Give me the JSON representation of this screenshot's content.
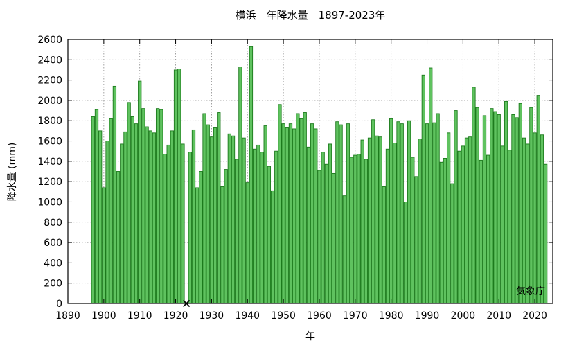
{
  "chart_data": {
    "type": "bar",
    "title": "横浜　年降水量　1897-2023年",
    "xlabel": "年",
    "ylabel": "降水量 (mm)",
    "source": "気象庁",
    "xlim": [
      1890,
      2025
    ],
    "ylim": [
      0,
      2600
    ],
    "x_ticks": [
      1890,
      1900,
      1910,
      1920,
      1930,
      1940,
      1950,
      1960,
      1970,
      1980,
      1990,
      2000,
      2010,
      2020
    ],
    "y_ticks": [
      0,
      200,
      400,
      600,
      800,
      1000,
      1200,
      1400,
      1600,
      1800,
      2000,
      2200,
      2400,
      2600
    ],
    "grid": true,
    "missing_marker": {
      "x": 1923,
      "y": 0,
      "symbol": "×"
    },
    "x": [
      1897,
      1898,
      1899,
      1900,
      1901,
      1902,
      1903,
      1904,
      1905,
      1906,
      1907,
      1908,
      1909,
      1910,
      1911,
      1912,
      1913,
      1914,
      1915,
      1916,
      1917,
      1918,
      1919,
      1920,
      1921,
      1922,
      1924,
      1925,
      1926,
      1927,
      1928,
      1929,
      1930,
      1931,
      1932,
      1933,
      1934,
      1935,
      1936,
      1937,
      1938,
      1939,
      1940,
      1941,
      1942,
      1943,
      1944,
      1945,
      1946,
      1947,
      1948,
      1949,
      1950,
      1951,
      1952,
      1953,
      1954,
      1955,
      1956,
      1957,
      1958,
      1959,
      1960,
      1961,
      1962,
      1963,
      1964,
      1965,
      1966,
      1967,
      1968,
      1969,
      1970,
      1971,
      1972,
      1973,
      1974,
      1975,
      1976,
      1977,
      1978,
      1979,
      1980,
      1981,
      1982,
      1983,
      1984,
      1985,
      1986,
      1987,
      1988,
      1989,
      1990,
      1991,
      1992,
      1993,
      1994,
      1995,
      1996,
      1997,
      1998,
      1999,
      2000,
      2001,
      2002,
      2003,
      2004,
      2005,
      2006,
      2007,
      2008,
      2009,
      2010,
      2011,
      2012,
      2013,
      2014,
      2015,
      2016,
      2017,
      2018,
      2019,
      2020,
      2021,
      2022,
      2023
    ],
    "values": [
      1840,
      1910,
      1700,
      1140,
      1600,
      1820,
      2140,
      1300,
      1570,
      1690,
      1980,
      1840,
      1770,
      2190,
      1920,
      1740,
      1700,
      1680,
      1920,
      1910,
      1470,
      1560,
      1700,
      2300,
      2310,
      1570,
      1490,
      1710,
      1140,
      1300,
      1870,
      1760,
      1640,
      1730,
      1880,
      1150,
      1320,
      1670,
      1650,
      1420,
      2330,
      1630,
      1190,
      2530,
      1520,
      1560,
      1490,
      1750,
      1350,
      1110,
      1500,
      1960,
      1770,
      1730,
      1770,
      1720,
      1870,
      1820,
      1880,
      1540,
      1770,
      1720,
      1310,
      1490,
      1370,
      1570,
      1280,
      1790,
      1760,
      1060,
      1770,
      1440,
      1460,
      1470,
      1610,
      1420,
      1630,
      1810,
      1650,
      1640,
      1150,
      1520,
      1820,
      1580,
      1790,
      1770,
      1000,
      1800,
      1440,
      1250,
      1620,
      2250,
      1770,
      2320,
      1780,
      1870,
      1390,
      1430,
      1680,
      1180,
      1900,
      1500,
      1550,
      1630,
      1640,
      2130,
      1930,
      1410,
      1850,
      1460,
      1920,
      1890,
      1860,
      1550,
      1990,
      1510,
      1860,
      1830,
      1970,
      1630,
      1570,
      1930,
      1680,
      2050,
      1660,
      1370
    ]
  }
}
